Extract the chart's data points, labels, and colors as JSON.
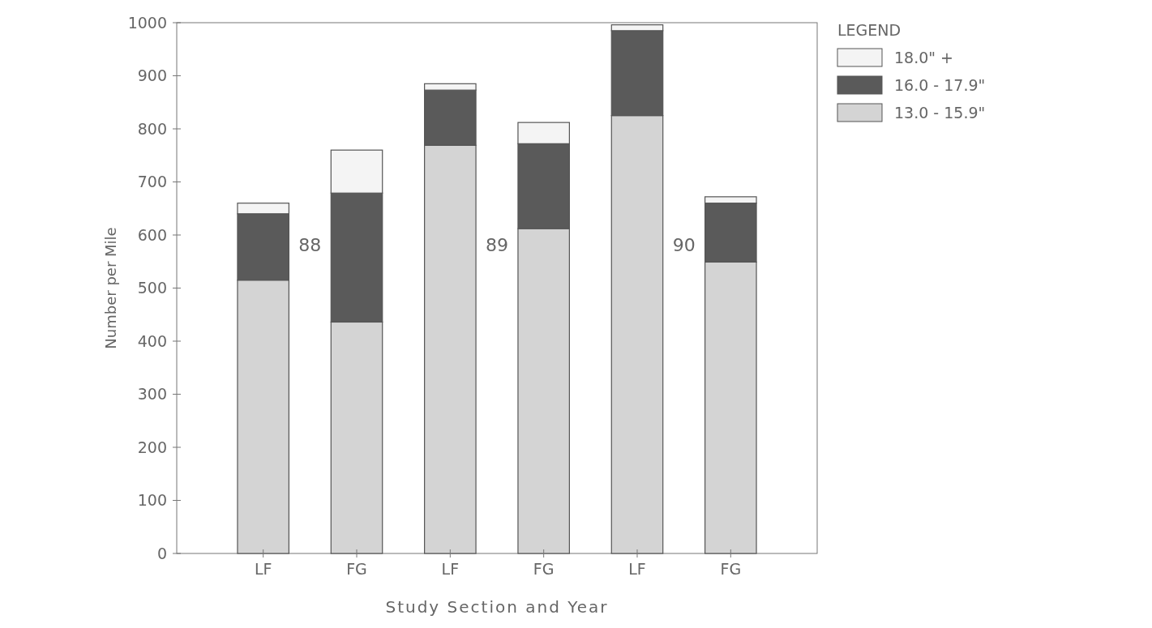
{
  "chart_data": {
    "type": "bar",
    "stacked": true,
    "xlabel": "Study Section and Year",
    "ylabel": "Number per Mile",
    "legend_title": "LEGEND",
    "legend": "top right",
    "categories": [
      "LF",
      "FG",
      "LF",
      "FG",
      "LF",
      "FG"
    ],
    "series": [
      {
        "name": "13.0 - 15.9\"",
        "color": "#d4d4d4",
        "values": [
          515,
          436,
          769,
          612,
          825,
          549
        ]
      },
      {
        "name": "16.0 - 17.9\"",
        "color": "#5a5a5a",
        "values": [
          125,
          243,
          104,
          160,
          160,
          111
        ]
      },
      {
        "name": "18.0\" +",
        "color": "#f4f4f4",
        "values": [
          20,
          81,
          12,
          40,
          11,
          12
        ]
      }
    ],
    "ylim": [
      0,
      1000
    ],
    "yticks": [
      0,
      100,
      200,
      300,
      400,
      500,
      600,
      700,
      800,
      900,
      1000
    ],
    "annotations": [
      "88",
      "89",
      "90"
    ]
  }
}
